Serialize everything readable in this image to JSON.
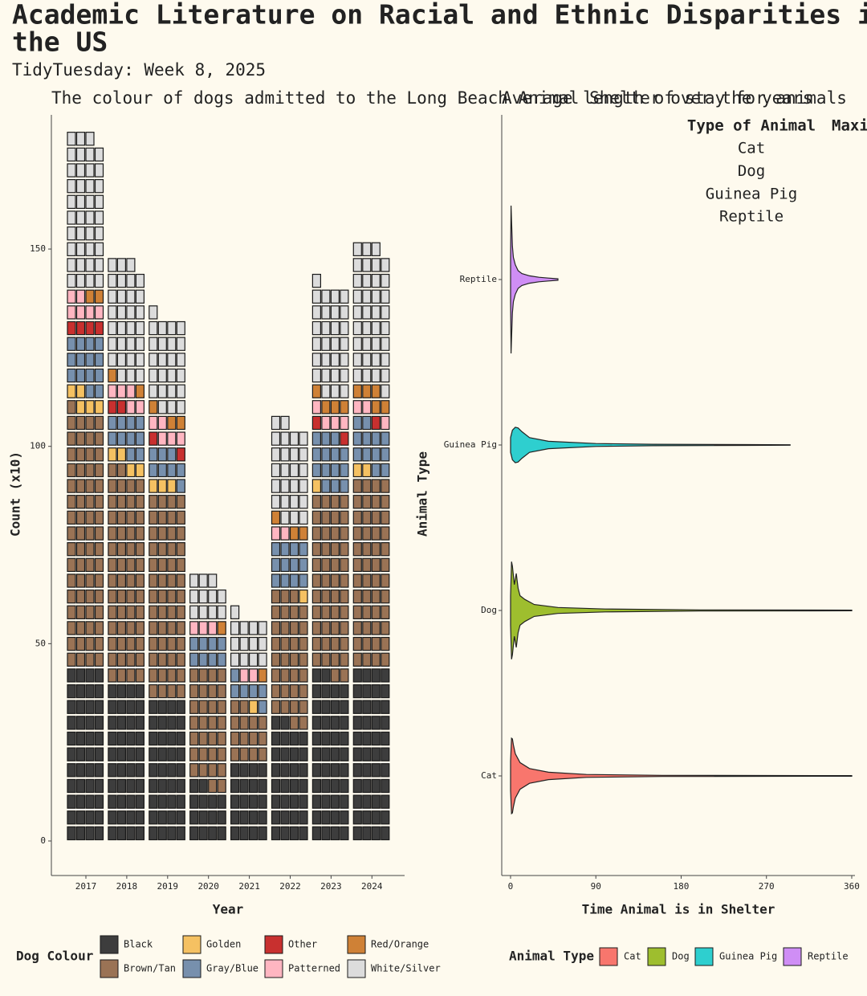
{
  "title": "Academic Literature on Racial and Ethnic Disparities in the US",
  "subtitle": "TidyTuesday: Week 8, 2025",
  "chart_data": [
    {
      "type": "waffle",
      "title": "The colour of dogs admitted to the Long Beach Animal Shelter over the years",
      "x_label": "Year",
      "y_label": "Count (x10)",
      "legend_title": "Dog Colour",
      "categories": [
        "2017",
        "2018",
        "2019",
        "2020",
        "2021",
        "2022",
        "2023",
        "2024"
      ],
      "ylim": [
        -8.75,
        184
      ],
      "yticks": [
        0,
        50,
        100,
        150
      ],
      "series": [
        {
          "name": "Black",
          "color": "#3d3d3d",
          "values": [
            44,
            40,
            36,
            14,
            20,
            30,
            42,
            44
          ]
        },
        {
          "name": "Brown/Tan",
          "color": "#9a7355",
          "values": [
            65,
            54,
            52,
            30,
            14,
            33,
            46,
            48
          ]
        },
        {
          "name": "Golden",
          "color": "#f5c162",
          "values": [
            5,
            4,
            3,
            0,
            1,
            1,
            1,
            2
          ]
        },
        {
          "name": "Gray/Blue",
          "color": "#7790ad",
          "values": [
            14,
            10,
            8,
            8,
            6,
            12,
            14,
            12
          ]
        },
        {
          "name": "Other",
          "color": "#c8302f",
          "values": [
            4,
            2,
            2,
            0,
            0,
            0,
            2,
            1
          ]
        },
        {
          "name": "Patterned",
          "color": "#ffb6c1",
          "values": [
            6,
            5,
            5,
            3,
            2,
            2,
            4,
            3
          ]
        },
        {
          "name": "Red/Orange",
          "color": "#cf8136",
          "values": [
            2,
            2,
            3,
            1,
            1,
            3,
            4,
            5
          ]
        },
        {
          "name": "White/Silver",
          "color": "#dcdcdc",
          "values": [
            39,
            30,
            24,
            11,
            13,
            25,
            28,
            36
          ]
        }
      ]
    },
    {
      "type": "violin",
      "title": "Average length of stay for animals",
      "x_label": "Time Animal is in Shelter",
      "y_label": "Animal Type",
      "legend_title": "Animal Type",
      "categories": [
        "Cat",
        "Dog",
        "Guinea Pig",
        "Reptile"
      ],
      "xlim": [
        -9.3,
        363.4
      ],
      "xticks": [
        0,
        90,
        180,
        270,
        360
      ],
      "table": {
        "header": [
          "Type of Animal",
          "Maxi"
        ],
        "rows": [
          "Cat",
          "Dog",
          "Guinea Pig",
          "Reptile"
        ]
      },
      "series": [
        {
          "name": "Cat",
          "color": "#f8766d",
          "x": [
            0,
            1,
            2,
            3,
            5,
            10,
            20,
            40,
            80,
            160,
            360
          ],
          "density": [
            0.2,
            0.51,
            0.5,
            0.42,
            0.3,
            0.18,
            0.1,
            0.05,
            0.02,
            0.008,
            0.004
          ]
        },
        {
          "name": "Dog",
          "color": "#9ebe2e",
          "x": [
            0,
            1,
            2,
            4,
            6,
            8,
            10,
            15,
            25,
            50,
            100,
            200,
            360
          ],
          "density": [
            0.2,
            0.66,
            0.6,
            0.35,
            0.5,
            0.3,
            0.2,
            0.15,
            0.08,
            0.04,
            0.02,
            0.008,
            0.004
          ]
        },
        {
          "name": "Guinea Pig",
          "color": "#2ecfcf",
          "x": [
            0,
            2,
            5,
            8,
            12,
            20,
            40,
            90,
            150,
            250,
            295
          ],
          "density": [
            0.1,
            0.2,
            0.24,
            0.23,
            0.18,
            0.1,
            0.05,
            0.02,
            0.01,
            0.005,
            0.003
          ]
        },
        {
          "name": "Reptile",
          "color": "#cf8ef5",
          "x": [
            0,
            0.5,
            1,
            2,
            3,
            5,
            8,
            12,
            20,
            30,
            40,
            50
          ],
          "density": [
            0.3,
            1.0,
            0.8,
            0.45,
            0.3,
            0.2,
            0.12,
            0.08,
            0.05,
            0.03,
            0.02,
            0.01
          ]
        }
      ]
    }
  ]
}
